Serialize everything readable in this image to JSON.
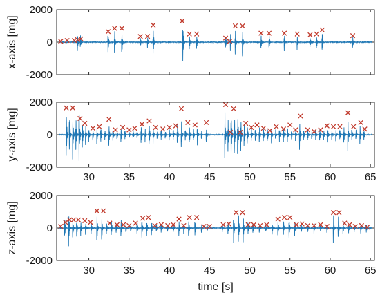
{
  "chart_data": [
    {
      "type": "line",
      "ylabel": "x-axis [mg]",
      "xlabel": "",
      "xlim": [
        26,
        65.5
      ],
      "ylim": [
        -2000,
        2000
      ],
      "yticks": [
        2000,
        0,
        -2000
      ],
      "xticks": [
        30,
        35,
        40,
        45,
        50,
        55,
        60,
        65
      ],
      "show_x_ticklabels": false,
      "line_color": "#1f77b4",
      "marker_color": "#c0392b",
      "bursts": [
        {
          "t": 28.6,
          "amp": 600
        },
        {
          "t": 28.95,
          "amp": 500
        },
        {
          "t": 32.4,
          "amp": 700
        },
        {
          "t": 33.2,
          "amp": 900
        },
        {
          "t": 34.1,
          "amp": 900
        },
        {
          "t": 36.4,
          "amp": 400
        },
        {
          "t": 37.3,
          "amp": 400
        },
        {
          "t": 38.0,
          "amp": 1000
        },
        {
          "t": 41.7,
          "amp": 1300
        },
        {
          "t": 42.5,
          "amp": 500
        },
        {
          "t": 43.4,
          "amp": 500
        },
        {
          "t": 47.0,
          "amp": 500
        },
        {
          "t": 47.6,
          "amp": 700
        },
        {
          "t": 48.2,
          "amp": 1000
        },
        {
          "t": 49.1,
          "amp": 1000
        },
        {
          "t": 51.4,
          "amp": 600
        },
        {
          "t": 52.4,
          "amp": 600
        },
        {
          "t": 54.3,
          "amp": 600
        },
        {
          "t": 55.9,
          "amp": 500
        },
        {
          "t": 57.5,
          "amp": 500
        },
        {
          "t": 58.3,
          "amp": 500
        },
        {
          "t": 59.0,
          "amp": 800
        },
        {
          "t": 62.8,
          "amp": 400
        }
      ],
      "peaks": [
        {
          "t": 26.5,
          "v": 50
        },
        {
          "t": 27.3,
          "v": 100
        },
        {
          "t": 28.2,
          "v": 100
        },
        {
          "t": 28.6,
          "v": 150
        },
        {
          "t": 29.0,
          "v": 200
        },
        {
          "t": 32.4,
          "v": 650
        },
        {
          "t": 33.2,
          "v": 850
        },
        {
          "t": 34.1,
          "v": 850
        },
        {
          "t": 36.4,
          "v": 350
        },
        {
          "t": 37.3,
          "v": 350
        },
        {
          "t": 38.0,
          "v": 1050
        },
        {
          "t": 41.6,
          "v": 1300
        },
        {
          "t": 42.5,
          "v": 500
        },
        {
          "t": 43.4,
          "v": 500
        },
        {
          "t": 47.0,
          "v": 250
        },
        {
          "t": 47.5,
          "v": 50
        },
        {
          "t": 48.2,
          "v": 1000
        },
        {
          "t": 49.1,
          "v": 1000
        },
        {
          "t": 51.4,
          "v": 550
        },
        {
          "t": 52.4,
          "v": 550
        },
        {
          "t": 54.3,
          "v": 550
        },
        {
          "t": 55.9,
          "v": 500
        },
        {
          "t": 57.5,
          "v": 450
        },
        {
          "t": 58.3,
          "v": 500
        },
        {
          "t": 59.0,
          "v": 750
        },
        {
          "t": 62.8,
          "v": 400
        }
      ]
    },
    {
      "type": "line",
      "ylabel": "y-axis [mg]",
      "xlabel": "",
      "xlim": [
        26,
        65.5
      ],
      "ylim": [
        -2000,
        2000
      ],
      "yticks": [
        2000,
        0,
        -2000
      ],
      "xticks": [
        30,
        35,
        40,
        45,
        50,
        55,
        60,
        65
      ],
      "show_x_ticklabels": true,
      "line_color": "#1f77b4",
      "marker_color": "#c0392b",
      "bursts": [
        {
          "t": 27.2,
          "amp": 1800
        },
        {
          "t": 27.6,
          "amp": 1500
        },
        {
          "t": 28.0,
          "amp": 1800
        },
        {
          "t": 28.4,
          "amp": 1300
        },
        {
          "t": 28.8,
          "amp": 1800
        },
        {
          "t": 29.2,
          "amp": 1200
        },
        {
          "t": 29.6,
          "amp": 800
        },
        {
          "t": 30.0,
          "amp": 500
        },
        {
          "t": 30.5,
          "amp": 400
        },
        {
          "t": 31.0,
          "amp": 600
        },
        {
          "t": 31.5,
          "amp": 500
        },
        {
          "t": 32.0,
          "amp": 400
        },
        {
          "t": 32.5,
          "amp": 900
        },
        {
          "t": 33.0,
          "amp": 500
        },
        {
          "t": 33.5,
          "amp": 400
        },
        {
          "t": 34.0,
          "amp": 600
        },
        {
          "t": 34.5,
          "amp": 400
        },
        {
          "t": 35.0,
          "amp": 300
        },
        {
          "t": 35.5,
          "amp": 400
        },
        {
          "t": 36.0,
          "amp": 300
        },
        {
          "t": 36.5,
          "amp": 700
        },
        {
          "t": 37.0,
          "amp": 500
        },
        {
          "t": 37.5,
          "amp": 900
        },
        {
          "t": 38.0,
          "amp": 600
        },
        {
          "t": 38.5,
          "amp": 300
        },
        {
          "t": 39.0,
          "amp": 400
        },
        {
          "t": 39.5,
          "amp": 300
        },
        {
          "t": 40.0,
          "amp": 500
        },
        {
          "t": 40.5,
          "amp": 400
        },
        {
          "t": 41.0,
          "amp": 800
        },
        {
          "t": 41.5,
          "amp": 1300
        },
        {
          "t": 42.0,
          "amp": 500
        },
        {
          "t": 42.5,
          "amp": 700
        },
        {
          "t": 43.0,
          "amp": 500
        },
        {
          "t": 43.5,
          "amp": 700
        },
        {
          "t": 44.0,
          "amp": 300
        },
        {
          "t": 44.6,
          "amp": 500
        },
        {
          "t": 46.9,
          "amp": 1900
        },
        {
          "t": 47.3,
          "amp": 1500
        },
        {
          "t": 47.7,
          "amp": 1700
        },
        {
          "t": 48.1,
          "amp": 1300
        },
        {
          "t": 48.5,
          "amp": 1900
        },
        {
          "t": 48.9,
          "amp": 1200
        },
        {
          "t": 49.3,
          "amp": 900
        },
        {
          "t": 49.7,
          "amp": 700
        },
        {
          "t": 50.2,
          "amp": 600
        },
        {
          "t": 50.7,
          "amp": 500
        },
        {
          "t": 51.2,
          "amp": 700
        },
        {
          "t": 51.7,
          "amp": 600
        },
        {
          "t": 52.2,
          "amp": 500
        },
        {
          "t": 52.7,
          "amp": 600
        },
        {
          "t": 53.2,
          "amp": 400
        },
        {
          "t": 53.7,
          "amp": 500
        },
        {
          "t": 54.2,
          "amp": 600
        },
        {
          "t": 54.7,
          "amp": 500
        },
        {
          "t": 55.2,
          "amp": 400
        },
        {
          "t": 55.7,
          "amp": 500
        },
        {
          "t": 56.2,
          "amp": 1000
        },
        {
          "t": 56.7,
          "amp": 500
        },
        {
          "t": 57.2,
          "amp": 400
        },
        {
          "t": 57.7,
          "amp": 300
        },
        {
          "t": 58.2,
          "amp": 400
        },
        {
          "t": 58.7,
          "amp": 500
        },
        {
          "t": 59.2,
          "amp": 400
        },
        {
          "t": 59.7,
          "amp": 500
        },
        {
          "t": 60.2,
          "amp": 400
        },
        {
          "t": 60.7,
          "amp": 500
        },
        {
          "t": 61.2,
          "amp": 400
        },
        {
          "t": 61.7,
          "amp": 700
        },
        {
          "t": 62.2,
          "amp": 1200
        },
        {
          "t": 62.7,
          "amp": 500
        },
        {
          "t": 63.2,
          "amp": 400
        },
        {
          "t": 63.7,
          "amp": 700
        },
        {
          "t": 64.2,
          "amp": 400
        }
      ],
      "peaks": [
        {
          "t": 27.2,
          "v": 1650
        },
        {
          "t": 28.0,
          "v": 1650
        },
        {
          "t": 28.9,
          "v": 1000
        },
        {
          "t": 29.5,
          "v": 700
        },
        {
          "t": 30.5,
          "v": 400
        },
        {
          "t": 31.3,
          "v": 500
        },
        {
          "t": 32.5,
          "v": 950
        },
        {
          "t": 33.3,
          "v": 300
        },
        {
          "t": 34.2,
          "v": 450
        },
        {
          "t": 35.0,
          "v": 300
        },
        {
          "t": 35.7,
          "v": 400
        },
        {
          "t": 36.6,
          "v": 650
        },
        {
          "t": 37.5,
          "v": 850
        },
        {
          "t": 38.3,
          "v": 450
        },
        {
          "t": 39.2,
          "v": 350
        },
        {
          "t": 40.0,
          "v": 450
        },
        {
          "t": 40.8,
          "v": 550
        },
        {
          "t": 41.5,
          "v": 1600
        },
        {
          "t": 42.3,
          "v": 750
        },
        {
          "t": 43.2,
          "v": 600
        },
        {
          "t": 44.6,
          "v": 750
        },
        {
          "t": 47.0,
          "v": 1850
        },
        {
          "t": 47.6,
          "v": 150
        },
        {
          "t": 48.0,
          "v": 1600
        },
        {
          "t": 48.8,
          "v": 150
        },
        {
          "t": 49.5,
          "v": 700
        },
        {
          "t": 50.2,
          "v": 450
        },
        {
          "t": 50.9,
          "v": 600
        },
        {
          "t": 51.7,
          "v": 400
        },
        {
          "t": 52.5,
          "v": 250
        },
        {
          "t": 53.3,
          "v": 500
        },
        {
          "t": 54.2,
          "v": 350
        },
        {
          "t": 55.0,
          "v": 600
        },
        {
          "t": 55.7,
          "v": 300
        },
        {
          "t": 56.3,
          "v": 1150
        },
        {
          "t": 57.2,
          "v": 300
        },
        {
          "t": 58.0,
          "v": 200
        },
        {
          "t": 58.8,
          "v": 300
        },
        {
          "t": 59.6,
          "v": 550
        },
        {
          "t": 60.4,
          "v": 500
        },
        {
          "t": 61.2,
          "v": 500
        },
        {
          "t": 62.2,
          "v": 1350
        },
        {
          "t": 62.9,
          "v": 500
        },
        {
          "t": 63.8,
          "v": 750
        },
        {
          "t": 64.3,
          "v": 350
        }
      ]
    },
    {
      "type": "line",
      "ylabel": "z-axis [mg]",
      "xlabel": "time [s]",
      "xlim": [
        26,
        65.5
      ],
      "ylim": [
        -2000,
        2000
      ],
      "yticks": [
        2000,
        0,
        -2000
      ],
      "xticks": [
        30,
        35,
        40,
        45,
        50,
        55,
        60,
        65
      ],
      "show_x_ticklabels": true,
      "line_color": "#1f77b4",
      "marker_color": "#c0392b",
      "bursts": [
        {
          "t": 27.0,
          "amp": 700
        },
        {
          "t": 27.5,
          "amp": 1300
        },
        {
          "t": 28.0,
          "amp": 800
        },
        {
          "t": 28.5,
          "amp": 700
        },
        {
          "t": 29.0,
          "amp": 600
        },
        {
          "t": 29.6,
          "amp": 500
        },
        {
          "t": 30.3,
          "amp": 400
        },
        {
          "t": 31.0,
          "amp": 1100
        },
        {
          "t": 31.6,
          "amp": 1000
        },
        {
          "t": 32.2,
          "amp": 500
        },
        {
          "t": 32.8,
          "amp": 600
        },
        {
          "t": 33.4,
          "amp": 400
        },
        {
          "t": 34.0,
          "amp": 700
        },
        {
          "t": 34.6,
          "amp": 400
        },
        {
          "t": 35.2,
          "amp": 300
        },
        {
          "t": 36.0,
          "amp": 600
        },
        {
          "t": 36.6,
          "amp": 700
        },
        {
          "t": 37.2,
          "amp": 600
        },
        {
          "t": 37.8,
          "amp": 500
        },
        {
          "t": 38.4,
          "amp": 300
        },
        {
          "t": 39.0,
          "amp": 400
        },
        {
          "t": 39.8,
          "amp": 300
        },
        {
          "t": 40.5,
          "amp": 400
        },
        {
          "t": 41.2,
          "amp": 600
        },
        {
          "t": 41.8,
          "amp": 400
        },
        {
          "t": 42.4,
          "amp": 700
        },
        {
          "t": 43.2,
          "amp": 600
        },
        {
          "t": 44.0,
          "amp": 300
        },
        {
          "t": 44.7,
          "amp": 300
        },
        {
          "t": 46.6,
          "amp": 300
        },
        {
          "t": 47.3,
          "amp": 600
        },
        {
          "t": 48.0,
          "amp": 1000
        },
        {
          "t": 48.6,
          "amp": 1300
        },
        {
          "t": 49.2,
          "amp": 900
        },
        {
          "t": 49.8,
          "amp": 500
        },
        {
          "t": 50.4,
          "amp": 400
        },
        {
          "t": 51.2,
          "amp": 400
        },
        {
          "t": 52.0,
          "amp": 300
        },
        {
          "t": 52.8,
          "amp": 400
        },
        {
          "t": 53.5,
          "amp": 700
        },
        {
          "t": 54.2,
          "amp": 500
        },
        {
          "t": 54.9,
          "amp": 700
        },
        {
          "t": 55.6,
          "amp": 500
        },
        {
          "t": 56.4,
          "amp": 400
        },
        {
          "t": 57.2,
          "amp": 300
        },
        {
          "t": 58.0,
          "amp": 400
        },
        {
          "t": 58.8,
          "amp": 300
        },
        {
          "t": 59.6,
          "amp": 400
        },
        {
          "t": 60.4,
          "amp": 1000
        },
        {
          "t": 61.0,
          "amp": 900
        },
        {
          "t": 61.6,
          "amp": 500
        },
        {
          "t": 62.3,
          "amp": 400
        },
        {
          "t": 63.0,
          "amp": 300
        },
        {
          "t": 63.8,
          "amp": 400
        },
        {
          "t": 64.5,
          "amp": 300
        }
      ],
      "peaks": [
        {
          "t": 26.5,
          "v": 100
        },
        {
          "t": 27.1,
          "v": 350
        },
        {
          "t": 27.6,
          "v": 500
        },
        {
          "t": 28.1,
          "v": 500
        },
        {
          "t": 28.7,
          "v": 500
        },
        {
          "t": 29.5,
          "v": 450
        },
        {
          "t": 30.2,
          "v": 350
        },
        {
          "t": 31.0,
          "v": 1050
        },
        {
          "t": 31.8,
          "v": 1050
        },
        {
          "t": 32.6,
          "v": 300
        },
        {
          "t": 33.5,
          "v": 200
        },
        {
          "t": 34.3,
          "v": 200
        },
        {
          "t": 35.0,
          "v": 150
        },
        {
          "t": 35.8,
          "v": 300
        },
        {
          "t": 36.7,
          "v": 600
        },
        {
          "t": 37.4,
          "v": 650
        },
        {
          "t": 38.2,
          "v": 150
        },
        {
          "t": 39.0,
          "v": 200
        },
        {
          "t": 39.8,
          "v": 150
        },
        {
          "t": 40.5,
          "v": 200
        },
        {
          "t": 41.2,
          "v": 550
        },
        {
          "t": 41.8,
          "v": 150
        },
        {
          "t": 42.5,
          "v": 650
        },
        {
          "t": 43.4,
          "v": 650
        },
        {
          "t": 44.3,
          "v": 100
        },
        {
          "t": 45.0,
          "v": 100
        },
        {
          "t": 46.7,
          "v": 200
        },
        {
          "t": 47.4,
          "v": 250
        },
        {
          "t": 48.3,
          "v": 950
        },
        {
          "t": 49.1,
          "v": 950
        },
        {
          "t": 49.8,
          "v": 200
        },
        {
          "t": 50.5,
          "v": 200
        },
        {
          "t": 51.3,
          "v": 150
        },
        {
          "t": 52.1,
          "v": 200
        },
        {
          "t": 53.5,
          "v": 550
        },
        {
          "t": 54.3,
          "v": 650
        },
        {
          "t": 55.0,
          "v": 650
        },
        {
          "t": 55.8,
          "v": 200
        },
        {
          "t": 56.5,
          "v": 250
        },
        {
          "t": 57.2,
          "v": 150
        },
        {
          "t": 58.0,
          "v": 150
        },
        {
          "t": 58.8,
          "v": 200
        },
        {
          "t": 59.6,
          "v": 100
        },
        {
          "t": 60.4,
          "v": 950
        },
        {
          "t": 61.1,
          "v": 950
        },
        {
          "t": 61.8,
          "v": 300
        },
        {
          "t": 62.4,
          "v": 200
        },
        {
          "t": 63.1,
          "v": 100
        },
        {
          "t": 63.9,
          "v": 150
        },
        {
          "t": 64.6,
          "v": 50
        }
      ]
    }
  ]
}
